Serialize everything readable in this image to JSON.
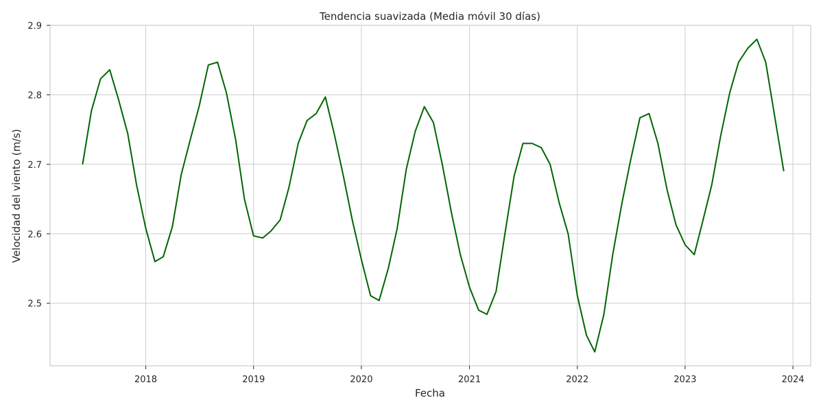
{
  "chart_data": {
    "type": "line",
    "title": "Tendencia suavizada (Media móvil 30 días)",
    "xlabel": "Fecha",
    "ylabel": "Velocidad del viento (m/s)",
    "xlim": [
      "2017-02-11",
      "2024-03-01"
    ],
    "ylim": [
      2.41,
      2.9
    ],
    "x_ticks": [
      "2018",
      "2019",
      "2020",
      "2021",
      "2022",
      "2023",
      "2024"
    ],
    "y_ticks": [
      "2.5",
      "2.6",
      "2.7",
      "2.8",
      "2.9"
    ],
    "grid": true,
    "color": "#006400",
    "x": [
      "2017-06-01",
      "2017-07-01",
      "2017-08-01",
      "2017-09-01",
      "2017-10-01",
      "2017-11-01",
      "2017-12-01",
      "2018-01-01",
      "2018-02-01",
      "2018-03-01",
      "2018-04-01",
      "2018-05-01",
      "2018-06-01",
      "2018-07-01",
      "2018-08-01",
      "2018-09-01",
      "2018-10-01",
      "2018-11-01",
      "2018-12-01",
      "2019-01-01",
      "2019-02-01",
      "2019-03-01",
      "2019-04-01",
      "2019-05-01",
      "2019-06-01",
      "2019-07-01",
      "2019-08-01",
      "2019-09-01",
      "2019-10-01",
      "2019-11-01",
      "2019-12-01",
      "2020-01-01",
      "2020-02-01",
      "2020-03-01",
      "2020-04-01",
      "2020-05-01",
      "2020-06-01",
      "2020-07-01",
      "2020-08-01",
      "2020-09-01",
      "2020-10-01",
      "2020-11-01",
      "2020-12-01",
      "2021-01-01",
      "2021-02-01",
      "2021-03-01",
      "2021-04-01",
      "2021-05-01",
      "2021-06-01",
      "2021-07-01",
      "2021-08-01",
      "2021-09-01",
      "2021-10-01",
      "2021-11-01",
      "2021-12-01",
      "2022-01-01",
      "2022-02-01",
      "2022-03-01",
      "2022-04-01",
      "2022-05-01",
      "2022-06-01",
      "2022-07-01",
      "2022-08-01",
      "2022-09-01",
      "2022-10-01",
      "2022-11-01",
      "2022-12-01",
      "2023-01-01",
      "2023-02-01",
      "2023-03-01",
      "2023-04-01",
      "2023-05-01",
      "2023-06-01",
      "2023-07-01",
      "2023-08-01",
      "2023-09-01",
      "2023-10-01",
      "2023-11-01",
      "2023-12-01"
    ],
    "series": [
      {
        "values": [
          2.7,
          2.777,
          2.823,
          2.836,
          2.793,
          2.744,
          2.67,
          2.608,
          2.56,
          2.567,
          2.61,
          2.685,
          2.736,
          2.784,
          2.843,
          2.847,
          2.803,
          2.736,
          2.65,
          2.597,
          2.594,
          2.604,
          2.62,
          2.667,
          2.73,
          2.763,
          2.773,
          2.797,
          2.744,
          2.683,
          2.62,
          2.563,
          2.511,
          2.504,
          2.55,
          2.607,
          2.693,
          2.747,
          2.783,
          2.76,
          2.7,
          2.63,
          2.57,
          2.523,
          2.49,
          2.484,
          2.517,
          2.6,
          2.683,
          2.73,
          2.73,
          2.724,
          2.7,
          2.644,
          2.6,
          2.511,
          2.454,
          2.43,
          2.484,
          2.57,
          2.644,
          2.707,
          2.767,
          2.773,
          2.73,
          2.663,
          2.613,
          2.584,
          2.57,
          2.617,
          2.67,
          2.74,
          2.803,
          2.847,
          2.867,
          2.88,
          2.847,
          2.767,
          2.69
        ]
      }
    ]
  }
}
